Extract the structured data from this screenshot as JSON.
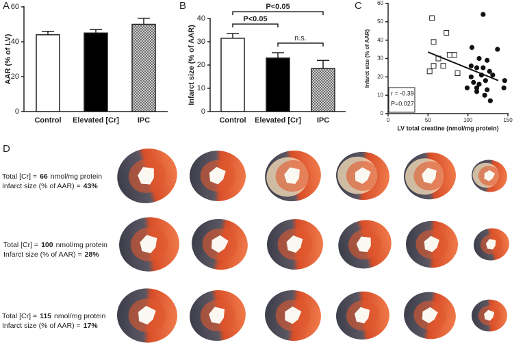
{
  "panel_labels": [
    "A",
    "B",
    "C",
    "D"
  ],
  "chart_data": [
    {
      "type": "bar",
      "ylabel": "AAR (% of LV)",
      "categories": [
        "Control",
        "Elevated [Cr]",
        "IPC"
      ],
      "values": [
        44,
        45,
        50
      ],
      "errors": [
        2,
        2,
        3.5
      ],
      "fills": [
        "white",
        "black",
        "crosshatch"
      ],
      "ylim": [
        0,
        60
      ],
      "yticks": [
        0,
        20,
        40,
        60
      ]
    },
    {
      "type": "bar",
      "ylabel": "Infarct size (% of AAR)",
      "categories": [
        "Control",
        "Elevated [Cr]",
        "IPC"
      ],
      "values": [
        31.5,
        23,
        18.5
      ],
      "errors": [
        2,
        2.3,
        3.5
      ],
      "fills": [
        "white",
        "black",
        "crosshatch"
      ],
      "ylim": [
        0,
        40
      ],
      "yticks": [
        0,
        10,
        20,
        30,
        40
      ],
      "annotations": [
        {
          "text": "P<0.05",
          "between": [
            "Control",
            "IPC"
          ]
        },
        {
          "text": "P<0.05",
          "between": [
            "Control",
            "Elevated [Cr]"
          ]
        },
        {
          "text": "n.s.",
          "between": [
            "Elevated [Cr]",
            "IPC"
          ]
        }
      ]
    },
    {
      "type": "scatter",
      "xlabel": "LV total creatine (nmol/mg protein)",
      "ylabel": "Infarct size (% of AAR)",
      "xlim": [
        0,
        150
      ],
      "xticks": [
        0,
        50,
        100,
        150
      ],
      "ylim": [
        0,
        60
      ],
      "yticks": [
        0,
        10,
        20,
        30,
        40,
        50,
        60
      ],
      "series": [
        {
          "marker": "open-square",
          "color": "#222222",
          "x": [
            55,
            57,
            73,
            52,
            57,
            69,
            77,
            83,
            87,
            63
          ],
          "y": [
            52,
            39,
            44,
            23,
            26,
            26,
            32,
            32,
            22,
            30
          ]
        },
        {
          "marker": "filled-circle",
          "color": "#111111",
          "x": [
            119,
            105,
            137,
            114,
            124,
            119,
            104,
            111,
            127,
            131,
            104,
            117,
            107,
            114,
            122,
            146,
            99,
            111,
            145,
            124,
            121,
            128,
            111
          ],
          "y": [
            54,
            36,
            35,
            30,
            29,
            25,
            26,
            25,
            23,
            21,
            20,
            21,
            17,
            16,
            18,
            18,
            14,
            14,
            14,
            13,
            10,
            7,
            12
          ]
        }
      ],
      "trend": {
        "x": [
          50,
          138
        ],
        "y": [
          33.5,
          18
        ]
      },
      "stats": [
        "r = -0.39",
        "P=0.027"
      ]
    }
  ],
  "panel_d": {
    "cr_label": "Total [Cr] =",
    "cr_unit": "nmol/mg protein",
    "infarct_label": "Infarct size (% of AAR) =",
    "rows": [
      {
        "cr": "66",
        "infarct": "43%"
      },
      {
        "cr": "100",
        "infarct": "28%"
      },
      {
        "cr": "115",
        "infarct": "17%"
      }
    ]
  }
}
